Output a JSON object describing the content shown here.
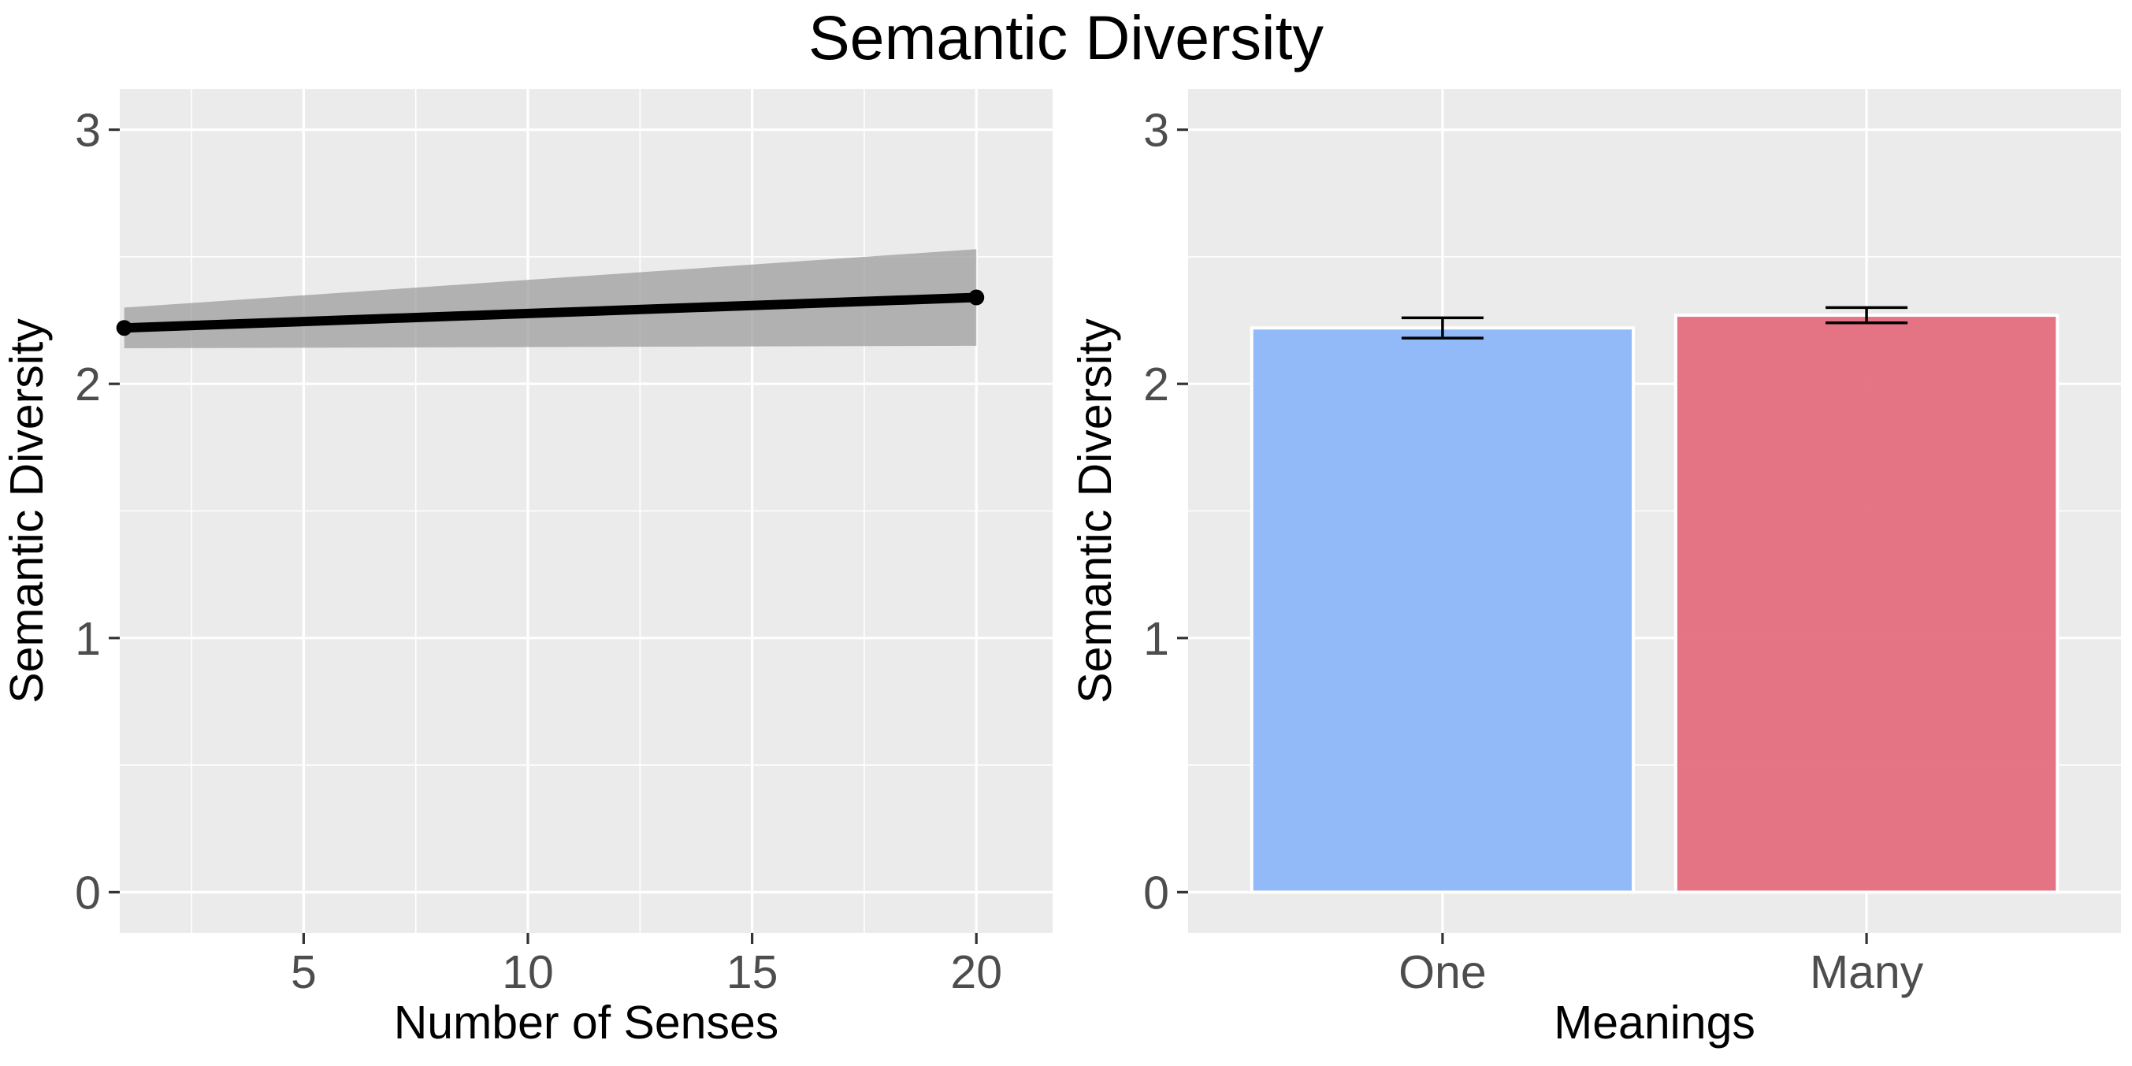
{
  "title": "Semantic Diversity",
  "colors": {
    "panel_background": "#ebebeb",
    "grid": "#ffffff",
    "line": "#000000",
    "ribbon": "#999999",
    "bar_one": "#8ab4f8",
    "bar_many": "#e3687a"
  },
  "chart_data": [
    {
      "type": "line",
      "title": "",
      "xlabel": "Number of Senses",
      "ylabel": "Semantic Diversity",
      "xlim": [
        0.9,
        21.7
      ],
      "ylim": [
        -0.16,
        3.16
      ],
      "xticks": [
        5,
        10,
        15,
        20
      ],
      "yticks": [
        0,
        1,
        2,
        3
      ],
      "grid": true,
      "legend": "none",
      "series": [
        {
          "x": [
            1,
            20
          ],
          "y": [
            2.22,
            2.34
          ],
          "ci_lower": [
            2.14,
            2.15
          ],
          "ci_upper": [
            2.3,
            2.53
          ]
        }
      ]
    },
    {
      "type": "bar",
      "title": "",
      "xlabel": "Meanings",
      "ylabel": "Semantic Diversity",
      "categories": [
        "One",
        "Many"
      ],
      "values": [
        2.22,
        2.27
      ],
      "error_lower": [
        2.18,
        2.24
      ],
      "error_upper": [
        2.26,
        2.3
      ],
      "ylim": [
        -0.16,
        3.16
      ],
      "yticks": [
        0,
        1,
        2,
        3
      ],
      "grid": true,
      "legend": "none"
    }
  ]
}
